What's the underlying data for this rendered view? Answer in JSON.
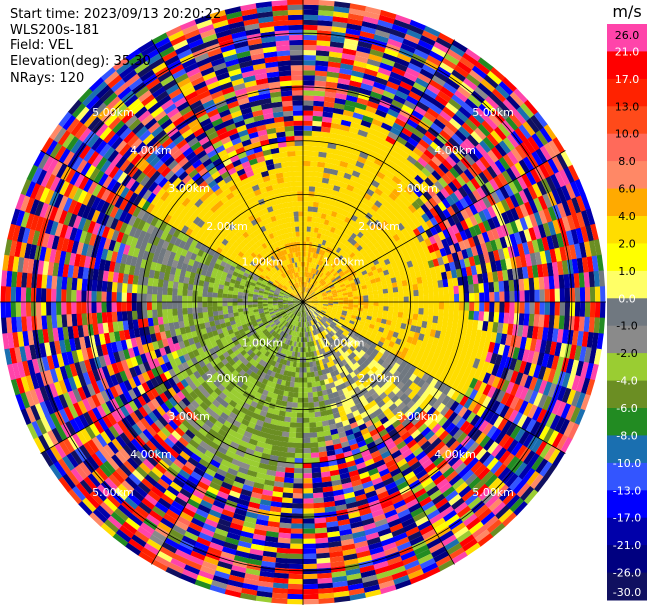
{
  "header": {
    "start_time": "Start time: 2023/09/13 20:20:22",
    "instrument": "WLS200s-181",
    "field": "Field: VEL",
    "elevation": "Elevation(deg): 35.30",
    "nrays": "NRays: 120"
  },
  "rings": {
    "labels": [
      "1.00km",
      "2.00km",
      "3.00km",
      "4.00km",
      "5.00km"
    ],
    "km": [
      1,
      2,
      3,
      4,
      5
    ]
  },
  "colorbar": {
    "unit": "m/s",
    "ticks": [
      "26.0",
      "21.0",
      "17.0",
      "13.0",
      "10.0",
      "8.0",
      "6.0",
      "4.0",
      "2.0",
      "1.0",
      "0.0",
      "-1.0",
      "-2.0",
      "-4.0",
      "-6.0",
      "-8.0",
      "-10.0",
      "-13.0",
      "-17.0",
      "-21.0",
      "-26.0",
      "-30.0"
    ],
    "colors": [
      "#ff44aa",
      "#ff0000",
      "#ff2200",
      "#ff4a1a",
      "#ff6a5a",
      "#ff8866",
      "#ffaa00",
      "#ffdd00",
      "#ffff00",
      "#ffff66",
      "#707880",
      "#8a8a8a",
      "#9acd32",
      "#6b8e23",
      "#228b22",
      "#1a6fb0",
      "#3355ff",
      "#0000ff",
      "#0000aa",
      "#000080",
      "#101060"
    ]
  },
  "chart_data": {
    "type": "heatmap",
    "subtype": "polar-ppi",
    "field": "VEL",
    "units": "m/s",
    "nrays": 120,
    "elevation_deg": 35.3,
    "range_rings_km": [
      1,
      2,
      3,
      4,
      5
    ],
    "max_range_km": 6.3,
    "colorbar_ticks": [
      26.0,
      21.0,
      17.0,
      13.0,
      10.0,
      8.0,
      6.0,
      4.0,
      2.0,
      1.0,
      0.0,
      -1.0,
      -2.0,
      -4.0,
      -6.0,
      -8.0,
      -10.0,
      -13.0,
      -17.0,
      -21.0,
      -26.0,
      -30.0
    ],
    "regions": [
      {
        "description": "upper half near field",
        "range_km": [
          0,
          3.2
        ],
        "velocity_ms": [
          2,
          4
        ]
      },
      {
        "description": "lower-left near field",
        "range_km": [
          0,
          3.5
        ],
        "velocity_ms": [
          -6,
          -2
        ]
      },
      {
        "description": "lower-right near field",
        "range_km": [
          0,
          3.0
        ],
        "velocity_ms": [
          -1,
          1
        ]
      },
      {
        "description": "far field noise",
        "range_km": [
          3.5,
          6.3
        ],
        "velocity_ms": [
          -30,
          26
        ]
      }
    ]
  }
}
